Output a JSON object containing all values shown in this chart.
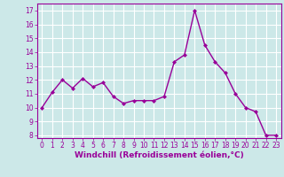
{
  "x": [
    0,
    1,
    2,
    3,
    4,
    5,
    6,
    7,
    8,
    9,
    10,
    11,
    12,
    13,
    14,
    15,
    16,
    17,
    18,
    19,
    20,
    21,
    22,
    23
  ],
  "y": [
    10.0,
    11.1,
    12.0,
    11.4,
    12.1,
    11.5,
    11.8,
    10.8,
    10.3,
    10.5,
    10.5,
    10.5,
    10.8,
    13.3,
    13.8,
    17.0,
    14.5,
    13.3,
    12.5,
    11.0,
    10.0,
    9.7,
    8.0,
    8.0
  ],
  "line_color": "#990099",
  "marker": "D",
  "marker_size": 2.0,
  "background_color": "#cce8e8",
  "grid_color": "#ffffff",
  "xlabel": "Windchill (Refroidissement éolien,°C)",
  "ylim": [
    7.8,
    17.5
  ],
  "xlim": [
    -0.5,
    23.5
  ],
  "yticks": [
    8,
    9,
    10,
    11,
    12,
    13,
    14,
    15,
    16,
    17
  ],
  "xticks": [
    0,
    1,
    2,
    3,
    4,
    5,
    6,
    7,
    8,
    9,
    10,
    11,
    12,
    13,
    14,
    15,
    16,
    17,
    18,
    19,
    20,
    21,
    22,
    23
  ],
  "tick_label_color": "#990099",
  "tick_label_fontsize": 5.5,
  "xlabel_fontsize": 6.5,
  "line_width": 1.0
}
